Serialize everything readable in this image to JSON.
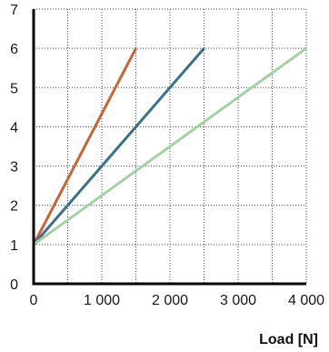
{
  "chart_data": {
    "type": "line",
    "title": "",
    "xlabel": "Load [N]",
    "ylabel": "",
    "xlim": [
      0,
      4000
    ],
    "ylim": [
      0,
      7
    ],
    "x_ticks": [
      0,
      500,
      1000,
      1500,
      2000,
      2500,
      3000,
      3500,
      4000
    ],
    "x_tick_labels": [
      "0",
      "",
      "1 000",
      "",
      "2 000",
      "",
      "3 000",
      "",
      "4 000"
    ],
    "y_ticks": [
      0,
      1,
      2,
      3,
      4,
      5,
      6,
      7
    ],
    "y_tick_labels": [
      "0",
      "1",
      "2",
      "3",
      "4",
      "5",
      "6",
      "7"
    ],
    "grid": true,
    "grid_style": "dotted",
    "legend": "none",
    "series": [
      {
        "color": "#c8643c",
        "x": [
          0,
          1500
        ],
        "y": [
          1,
          6
        ]
      },
      {
        "color": "#3f7089",
        "x": [
          0,
          2500
        ],
        "y": [
          1,
          6
        ]
      },
      {
        "color": "#a9cfa8",
        "x": [
          0,
          4000
        ],
        "y": [
          1,
          6
        ]
      }
    ]
  }
}
